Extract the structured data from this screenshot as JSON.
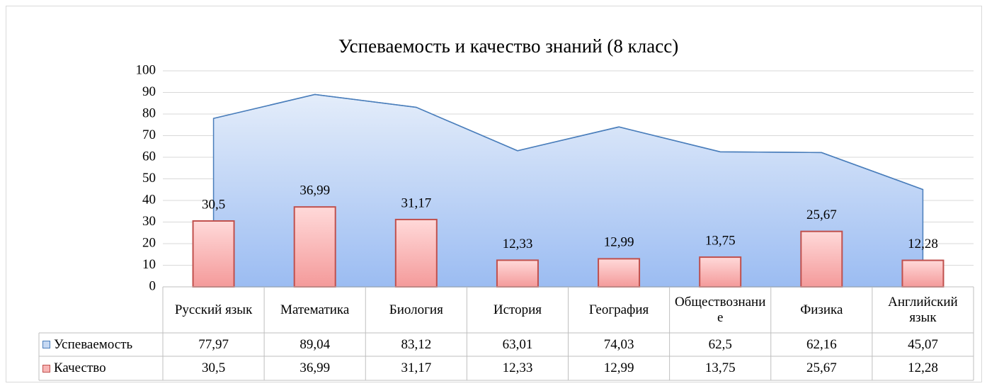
{
  "chart_data": {
    "type": "bar",
    "title": "Успеваемость и качество знаний (8 класс)",
    "categories": [
      "Русский язык",
      "Математика",
      "Биология",
      "История",
      "География",
      "Обществознание",
      "Физика",
      "Английский язык"
    ],
    "series": [
      {
        "name": "Успеваемость",
        "type": "area",
        "color": "#4a7ebb",
        "values": [
          77.97,
          89.04,
          83.12,
          63.01,
          74.03,
          62.5,
          62.16,
          45.07
        ],
        "value_labels": [
          "77,97",
          "89,04",
          "83,12",
          "63,01",
          "74,03",
          "62,5",
          "62,16",
          "45,07"
        ]
      },
      {
        "name": "Качество",
        "type": "bar",
        "color": "#c0504d",
        "values": [
          30.5,
          36.99,
          31.17,
          12.33,
          12.99,
          13.75,
          25.67,
          12.28
        ],
        "value_labels": [
          "30,5",
          "36,99",
          "31,17",
          "12,33",
          "12,99",
          "13,75",
          "25,67",
          "12,28"
        ]
      }
    ],
    "ylim": [
      0,
      100
    ],
    "yticks": [
      0,
      10,
      20,
      30,
      40,
      50,
      60,
      70,
      80,
      90,
      100
    ],
    "grid": true
  }
}
